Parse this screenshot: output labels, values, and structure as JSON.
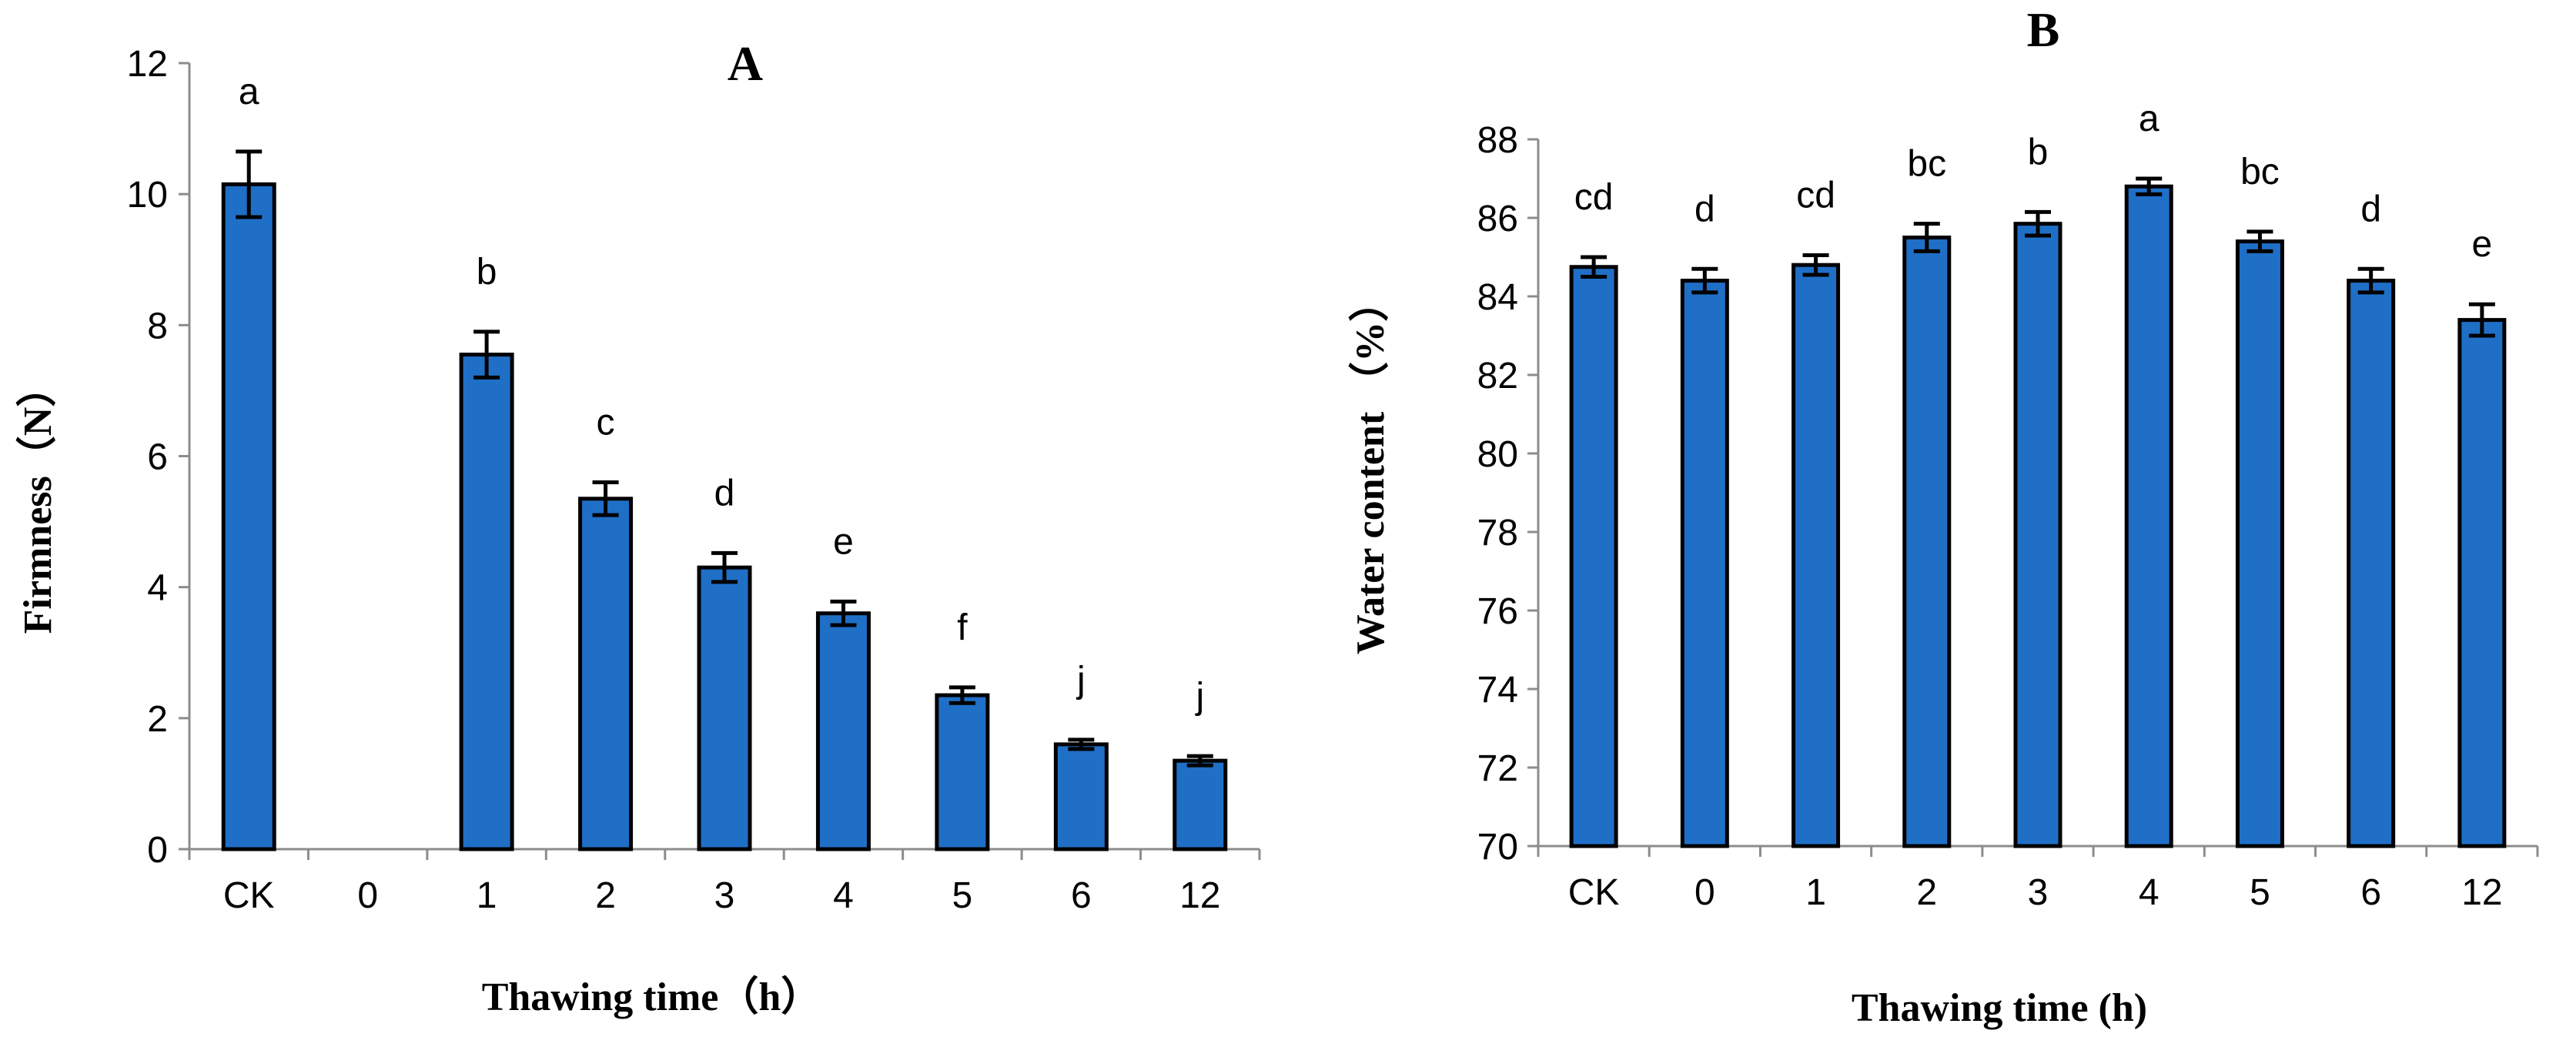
{
  "colors": {
    "bar_fill": "#1f6fc7",
    "axis": "#8c8c8c"
  },
  "chart_data": [
    {
      "type": "bar",
      "title": "A",
      "xlabel": "Thawing time（h）",
      "ylabel": "Firmness（N）",
      "ylim": [
        0,
        12
      ],
      "yticks": [
        0,
        2,
        4,
        6,
        8,
        10,
        12
      ],
      "categories": [
        "CK",
        "0",
        "1",
        "2",
        "3",
        "4",
        "5",
        "6",
        "12"
      ],
      "values": [
        10.15,
        0,
        7.55,
        5.35,
        4.3,
        3.6,
        2.35,
        1.6,
        1.35
      ],
      "errors": [
        0.5,
        0,
        0.35,
        0.25,
        0.22,
        0.18,
        0.12,
        0.07,
        0.07
      ],
      "significance": [
        "a",
        "",
        "b",
        "c",
        "d",
        "e",
        "f",
        "j",
        "j"
      ],
      "grid": false,
      "legend": "none"
    },
    {
      "type": "bar",
      "title": "B",
      "xlabel": "Thawing time (h)",
      "ylabel": "Water content （%）",
      "ylim": [
        70,
        88
      ],
      "yticks": [
        70,
        72,
        74,
        76,
        78,
        80,
        82,
        84,
        86,
        88
      ],
      "categories": [
        "CK",
        "0",
        "1",
        "2",
        "3",
        "4",
        "5",
        "6",
        "12"
      ],
      "values": [
        84.75,
        84.4,
        84.8,
        85.5,
        85.85,
        86.8,
        85.4,
        84.4,
        83.4
      ],
      "errors": [
        0.25,
        0.3,
        0.25,
        0.35,
        0.3,
        0.2,
        0.25,
        0.3,
        0.4
      ],
      "significance": [
        "cd",
        "d",
        "cd",
        "bc",
        "b",
        "a",
        "bc",
        "d",
        "e"
      ],
      "grid": false,
      "legend": "none"
    }
  ]
}
